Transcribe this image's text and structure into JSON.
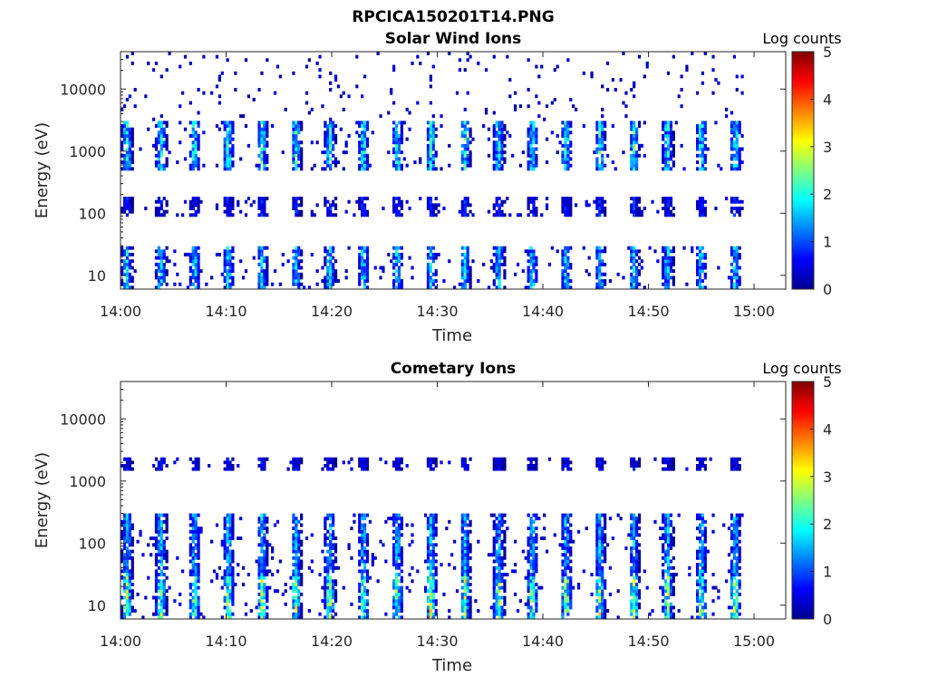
{
  "figure_title": "RPCICA150201T14.PNG",
  "colorbar": {
    "label": "Log counts",
    "ticks": [
      "0",
      "1",
      "2",
      "3",
      "4",
      "5"
    ],
    "range": [
      0,
      5
    ],
    "colormap": "jet"
  },
  "chart_data": [
    {
      "type": "heatmap",
      "title": "Solar Wind Ions",
      "xlabel": "Time",
      "ylabel": "Energy (eV)",
      "x_ticks": [
        "14:00",
        "14:10",
        "14:20",
        "14:30",
        "14:40",
        "14:50",
        "15:00"
      ],
      "y_ticks": [
        "10",
        "100",
        "1000",
        "10000"
      ],
      "y_scale": "log",
      "xlim": [
        "14:00",
        "15:03"
      ],
      "ylim": [
        6,
        40000
      ],
      "colorbar_label": "Log counts",
      "clim": [
        0,
        5
      ],
      "data_end": "14:59",
      "features": [
        {
          "energy_band": [
            6,
            28
          ],
          "pulse_period_min": 3.2,
          "peak_log_counts": 2.2
        },
        {
          "energy_band": [
            90,
            180
          ],
          "pulse_period_min": 3.2,
          "peak_log_counts": 1.0
        },
        {
          "energy_band": [
            500,
            3000
          ],
          "pulse_period_min": 3.2,
          "peak_log_counts": 2.5
        },
        {
          "energy_band": [
            3000,
            40000
          ],
          "type": "sparse",
          "peak_log_counts": 0.5
        }
      ]
    },
    {
      "type": "heatmap",
      "title": "Cometary Ions",
      "xlabel": "Time",
      "ylabel": "Energy (eV)",
      "x_ticks": [
        "14:00",
        "14:10",
        "14:20",
        "14:30",
        "14:40",
        "14:50",
        "15:00"
      ],
      "y_ticks": [
        "10",
        "100",
        "1000",
        "10000"
      ],
      "y_scale": "log",
      "xlim": [
        "14:00",
        "15:03"
      ],
      "ylim": [
        6,
        40000
      ],
      "colorbar_label": "Log counts",
      "clim": [
        0,
        5
      ],
      "data_end": "14:59",
      "features": [
        {
          "energy_band": [
            6,
            28
          ],
          "pulse_period_min": 3.2,
          "peak_log_counts": 3.3
        },
        {
          "energy_band": [
            28,
            300
          ],
          "pulse_period_min": 3.2,
          "peak_log_counts": 2.0
        },
        {
          "energy_band": [
            1500,
            2500
          ],
          "pulse_period_min": 3.2,
          "peak_log_counts": 0.8
        }
      ]
    }
  ]
}
